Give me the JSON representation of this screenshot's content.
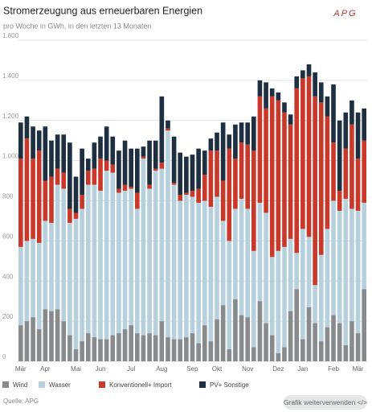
{
  "chart_data": {
    "type": "stacked_bar",
    "title": "Stromerzeugung aus erneuerbaren Energien",
    "subtitle": "pro Woche in GWh, in den letzten 13 Monaten",
    "logo": "APG",
    "source": "Quelle: APG",
    "button": "Grafik weiterverwenden </>",
    "categories": [
      "Mär",
      null,
      null,
      null,
      "Apr",
      null,
      null,
      null,
      null,
      "Mai",
      null,
      null,
      null,
      "Jun",
      null,
      null,
      null,
      null,
      "Jul",
      null,
      null,
      null,
      null,
      "Aug",
      null,
      null,
      null,
      null,
      "Sep",
      null,
      null,
      null,
      "Okt",
      null,
      null,
      null,
      null,
      "Nov",
      null,
      null,
      null,
      null,
      "Dez",
      null,
      null,
      null,
      "Jan",
      null,
      null,
      null,
      null,
      "Feb",
      null,
      null,
      null,
      "Mär",
      null
    ],
    "series": [
      {
        "name": "Wind",
        "color": "#878b8e",
        "values": [
          180,
          200,
          220,
          160,
          260,
          250,
          260,
          200,
          130,
          60,
          100,
          140,
          120,
          110,
          110,
          130,
          140,
          160,
          180,
          140,
          130,
          140,
          130,
          200,
          120,
          110,
          110,
          120,
          140,
          90,
          180,
          100,
          210,
          280,
          60,
          310,
          230,
          220,
          70,
          300,
          190,
          130,
          40,
          70,
          250,
          360,
          110,
          270,
          190,
          100,
          170,
          230,
          190,
          80,
          200,
          140,
          360
        ]
      },
      {
        "name": "Wasser",
        "color": "#b6d0de",
        "values": [
          390,
          400,
          390,
          430,
          440,
          440,
          620,
          660,
          560,
          650,
          660,
          740,
          760,
          740,
          840,
          810,
          700,
          690,
          680,
          620,
          880,
          720,
          820,
          760,
          1030,
          770,
          690,
          710,
          680,
          700,
          620,
          670,
          610,
          420,
          540,
          450,
          580,
          540,
          480,
          490,
          550,
          390,
          510,
          500,
          360,
          180,
          550,
          350,
          190,
          430,
          490,
          570,
          560,
          730,
          560,
          610,
          430
        ]
      },
      {
        "name": "Konventionell+ Import",
        "color": "#c9392b",
        "values": [
          440,
          510,
          400,
          460,
          200,
          230,
          80,
          80,
          70,
          30,
          70,
          70,
          80,
          160,
          50,
          40,
          20,
          30,
          10,
          80,
          10,
          20,
          10,
          30,
          10,
          10,
          30,
          10,
          30,
          70,
          130,
          280,
          230,
          200,
          460,
          250,
          280,
          320,
          500,
          530,
          520,
          800,
          750,
          670,
          570,
          820,
          750,
          800,
          940,
          760,
          560,
          290,
          100,
          250,
          420,
          260,
          310
        ]
      },
      {
        "name": "PV+ Sonstige",
        "color": "#1d2f40",
        "values": [
          180,
          110,
          160,
          100,
          270,
          180,
          170,
          190,
          330,
          180,
          230,
          60,
          130,
          110,
          170,
          140,
          190,
          220,
          190,
          220,
          50,
          220,
          140,
          330,
          40,
          230,
          210,
          180,
          180,
          200,
          120,
          60,
          90,
          290,
          70,
          170,
          100,
          110,
          170,
          80,
          130,
          40,
          40,
          50,
          50,
          60,
          40,
          60,
          120,
          100,
          100,
          290,
          350,
          180,
          120,
          230,
          160
        ]
      }
    ],
    "ylim": [
      0,
      1600
    ],
    "yticks": [
      0,
      200,
      400,
      600,
      800,
      {
        "value": 1000,
        "label": "1.000"
      },
      {
        "value": 1200,
        "label": "1.200"
      },
      {
        "value": 1400,
        "label": "1.400"
      },
      {
        "value": 1600,
        "label": "1.600"
      }
    ],
    "grid": true,
    "legend": "bottom"
  }
}
